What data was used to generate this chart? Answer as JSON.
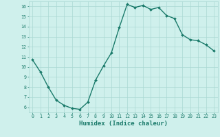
{
  "x": [
    0,
    1,
    2,
    3,
    4,
    5,
    6,
    7,
    8,
    9,
    10,
    11,
    12,
    13,
    14,
    15,
    16,
    17,
    18,
    19,
    20,
    21,
    22,
    23
  ],
  "y": [
    10.7,
    9.5,
    8.0,
    6.7,
    6.2,
    5.9,
    5.8,
    6.5,
    8.7,
    10.1,
    11.4,
    13.9,
    16.2,
    15.9,
    16.1,
    15.7,
    15.9,
    15.1,
    14.8,
    13.2,
    12.7,
    12.6,
    12.2,
    11.6
  ],
  "line_color": "#1a7a6a",
  "marker": "D",
  "marker_size": 2.0,
  "line_width": 1.0,
  "xlabel": "Humidex (Indice chaleur)",
  "xlabel_fontsize": 6.5,
  "xlabel_fontweight": "bold",
  "background_color": "#cff0ec",
  "grid_color": "#aad8d3",
  "tick_color": "#1a7a6a",
  "xlim": [
    -0.5,
    23.5
  ],
  "ylim": [
    5.5,
    16.5
  ],
  "yticks": [
    6,
    7,
    8,
    9,
    10,
    11,
    12,
    13,
    14,
    15,
    16
  ],
  "xticks": [
    0,
    1,
    2,
    3,
    4,
    5,
    6,
    7,
    8,
    9,
    10,
    11,
    12,
    13,
    14,
    15,
    16,
    17,
    18,
    19,
    20,
    21,
    22,
    23
  ],
  "tick_fontsize": 4.8
}
